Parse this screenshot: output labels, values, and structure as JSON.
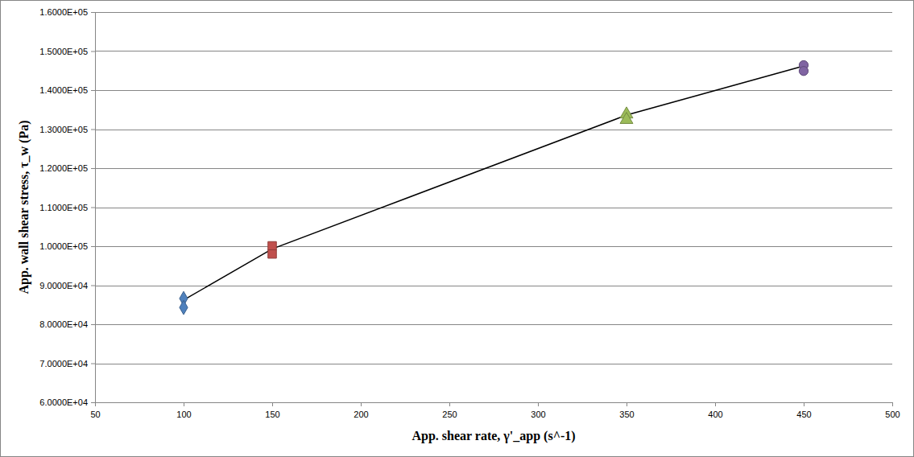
{
  "chart_data": {
    "type": "scatter",
    "x_label": "App. shear rate, γ'_app (s^-1)",
    "y_label": "App. wall shear stress, τ_w (Pa)",
    "xlim": [
      50,
      500
    ],
    "xticks": [
      50,
      100,
      150,
      200,
      250,
      300,
      350,
      400,
      450,
      500
    ],
    "ylim": [
      60000,
      160000
    ],
    "yticks": [
      {
        "value": 60000,
        "label": "6.0000E+04"
      },
      {
        "value": 70000,
        "label": "7.0000E+04"
      },
      {
        "value": 80000,
        "label": "8.0000E+04"
      },
      {
        "value": 90000,
        "label": "9.0000E+04"
      },
      {
        "value": 100000,
        "label": "1.0000E+05"
      },
      {
        "value": 110000,
        "label": "1.1000E+05"
      },
      {
        "value": 120000,
        "label": "1.2000E+05"
      },
      {
        "value": 130000,
        "label": "1.3000E+05"
      },
      {
        "value": 140000,
        "label": "1.4000E+05"
      },
      {
        "value": 150000,
        "label": "1.5000E+05"
      },
      {
        "value": 160000,
        "label": "1.6000E+05"
      }
    ],
    "grid": true,
    "series": [
      {
        "type": "line",
        "color": "#000000",
        "line_style": "solid",
        "x": [
          100,
          150,
          350,
          450
        ],
        "values": [
          86200,
          99300,
          133600,
          146200
        ]
      },
      {
        "type": "scatter",
        "color": "#4f81bd",
        "marker": "diamond",
        "x": [
          100,
          100
        ],
        "values": [
          86600,
          84300
        ]
      },
      {
        "type": "scatter",
        "color": "#c0504d",
        "marker": "square",
        "x": [
          150,
          150
        ],
        "values": [
          100100,
          98000
        ]
      },
      {
        "type": "scatter",
        "color": "#9bbb59",
        "marker": "triangle",
        "x": [
          350,
          350
        ],
        "values": [
          133800,
          132400
        ]
      },
      {
        "type": "scatter",
        "color": "#8064a2",
        "marker": "circle",
        "x": [
          450,
          450
        ],
        "values": [
          146400,
          144900
        ]
      }
    ]
  }
}
